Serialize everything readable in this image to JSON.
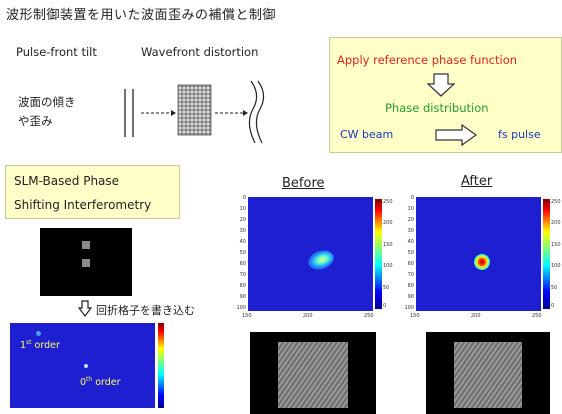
{
  "title": "波形制御装置を用いた波面歪みの補償と制御",
  "labels": {
    "pulse_front_tilt": "Pulse-front tilt",
    "wavefront_distortion": "Wavefront distortion",
    "jp_tilt_line1": "波面の傾き",
    "jp_tilt_line2": "や歪み"
  },
  "ref_box": {
    "apply": "Apply reference phase function",
    "phase": "Phase distribution",
    "cw": "CW beam",
    "fs": "fs pulse"
  },
  "slm_box": {
    "line1": "SLM-Based Phase",
    "line2": "Shifting Interferometry"
  },
  "grating_note": "回折格子を書き込む",
  "orders": {
    "first_base": "1",
    "first_sup": "st",
    "first_rest": " order",
    "zeroth_base": "0",
    "zeroth_sup": "th",
    "zeroth_rest": " order"
  },
  "before_label": "Before",
  "after_label": "After",
  "before_plot": {
    "y_ticks": [
      "0",
      "10",
      "20",
      "30",
      "40",
      "50",
      "60",
      "70",
      "80",
      "90",
      "100"
    ],
    "x_ticks": [
      "150",
      "200",
      "250"
    ],
    "cbar_ticks": [
      "250",
      "200",
      "150",
      "100",
      "50",
      "0"
    ]
  },
  "after_plot": {
    "y_ticks": [
      "0",
      "10",
      "20",
      "30",
      "40",
      "50",
      "60",
      "70",
      "80",
      "90",
      "100"
    ],
    "x_ticks": [
      "150",
      "200",
      "250"
    ],
    "cbar_ticks": [
      "250",
      "200",
      "150",
      "100",
      "50",
      "0"
    ]
  },
  "colors": {
    "heatmap_bg": "#1d1fd0",
    "title_red": "#e0231c",
    "phase_green": "#2a9a2a",
    "beam_blue": "#1a35b5",
    "box_yellow": "#ffffc8"
  }
}
